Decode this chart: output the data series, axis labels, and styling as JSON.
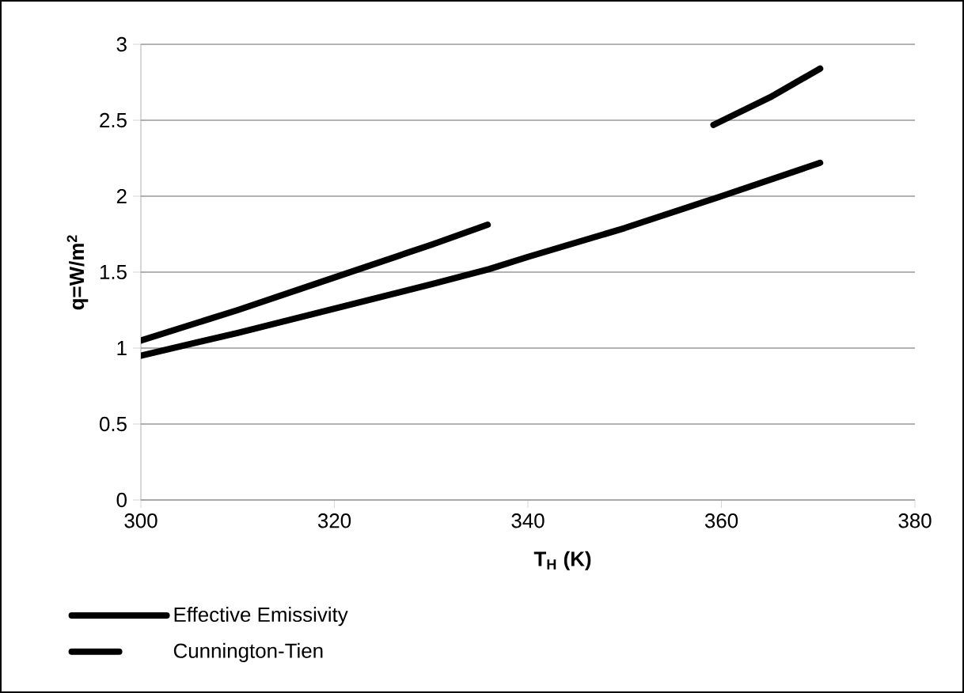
{
  "chart_data": {
    "type": "line",
    "xlabel": "T$_{H}$ (K)",
    "ylabel": "q=W/m$^{2}$",
    "xlim": [
      300,
      380
    ],
    "xticks": [
      300,
      320,
      340,
      360,
      380
    ],
    "ylim": [
      0,
      3
    ],
    "yticks": [
      0,
      0.5,
      1,
      1.5,
      2,
      2.5,
      3
    ],
    "grid": "y",
    "legend": "bottom left",
    "series": [
      {
        "name": "Effective Emissivity",
        "color": "#000000",
        "line_style": "solid",
        "x": [
          300,
          310,
          320,
          330,
          336,
          340,
          350,
          360,
          370.2
        ],
        "values": [
          0.95,
          1.1,
          1.26,
          1.42,
          1.52,
          1.6,
          1.79,
          2.0,
          2.22
        ]
      },
      {
        "name": "Cunnington-Tien",
        "color": "#000000",
        "line_style": "dashed",
        "x": [
          300,
          310,
          319.3,
          330,
          336.2,
          359.2,
          365,
          370.2
        ],
        "values": [
          1.05,
          1.25,
          1.45,
          1.68,
          1.82,
          2.47,
          2.65,
          2.84
        ]
      }
    ]
  }
}
